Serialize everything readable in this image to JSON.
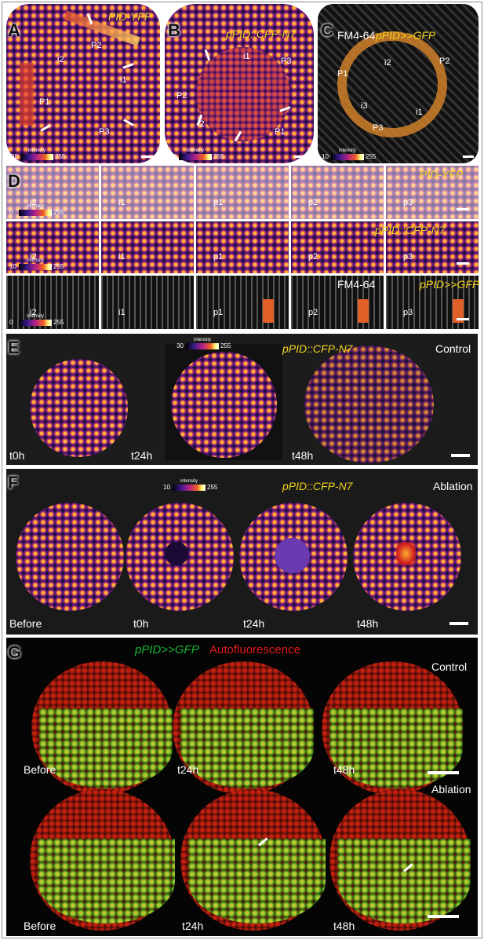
{
  "panels": {
    "A": {
      "label": "A",
      "title": "PID-YFP",
      "regions": [
        "P2",
        "i2",
        "P1",
        "i1",
        "P3"
      ],
      "colorbar": {
        "min": 30,
        "caption": "intensity",
        "max": 255
      }
    },
    "B": {
      "label": "B",
      "title": "pPID::CFP-N7",
      "regions": [
        "i1",
        "P3",
        "P2",
        "i2",
        "P1"
      ],
      "colorbar": {
        "min": 30,
        "caption": "intensity",
        "max": 255
      }
    },
    "C": {
      "label": "C",
      "stain": "FM4-64",
      "title": "pPID>>GFP",
      "regions": [
        "i2",
        "P2",
        "P1",
        "i3",
        "i1",
        "P3"
      ],
      "colorbar": {
        "min": 10,
        "caption": "intensity",
        "max": 255
      }
    },
    "D": {
      "label": "D",
      "rows": [
        {
          "title": "PID-YFP",
          "regions": [
            "i2",
            "i1",
            "p1",
            "p2",
            "p3"
          ],
          "colorbar": {
            "min": 0,
            "caption": "intensity",
            "max": 255
          }
        },
        {
          "title": "pPID::CFP-N7",
          "regions": [
            "i2",
            "i1",
            "p1",
            "p2",
            "p3"
          ],
          "colorbar": {
            "min": 10,
            "caption": "intensity",
            "max": 255
          }
        },
        {
          "stain": "FM4-64",
          "title": "pPID>>GFP",
          "regions": [
            "i2",
            "i1",
            "p1",
            "p2",
            "p3"
          ],
          "colorbar": {
            "min": 0,
            "caption": "intensity",
            "max": 255
          }
        }
      ]
    },
    "E": {
      "label": "E",
      "title": "pPID::CFP-N7",
      "condition": "Control",
      "timepoints": [
        "t0h",
        "t24h",
        "t48h"
      ],
      "colorbar": {
        "min": 30,
        "caption": "intensity",
        "max": 255
      }
    },
    "F": {
      "label": "F",
      "title": "pPID::CFP-N7",
      "condition": "Ablation",
      "timepoints": [
        "Before",
        "t0h",
        "t24h",
        "t48h"
      ],
      "colorbar": {
        "min": 10,
        "caption": "intensity",
        "max": 255
      }
    },
    "G": {
      "label": "G",
      "green_channel": "pPID>>GFP",
      "red_channel": "Autofluorescence",
      "rows": [
        {
          "condition": "Control",
          "timepoints": [
            "Before",
            "t24h",
            "t48h"
          ]
        },
        {
          "condition": "Ablation",
          "timepoints": [
            "Before",
            "t24h",
            "t48h"
          ]
        }
      ]
    }
  }
}
